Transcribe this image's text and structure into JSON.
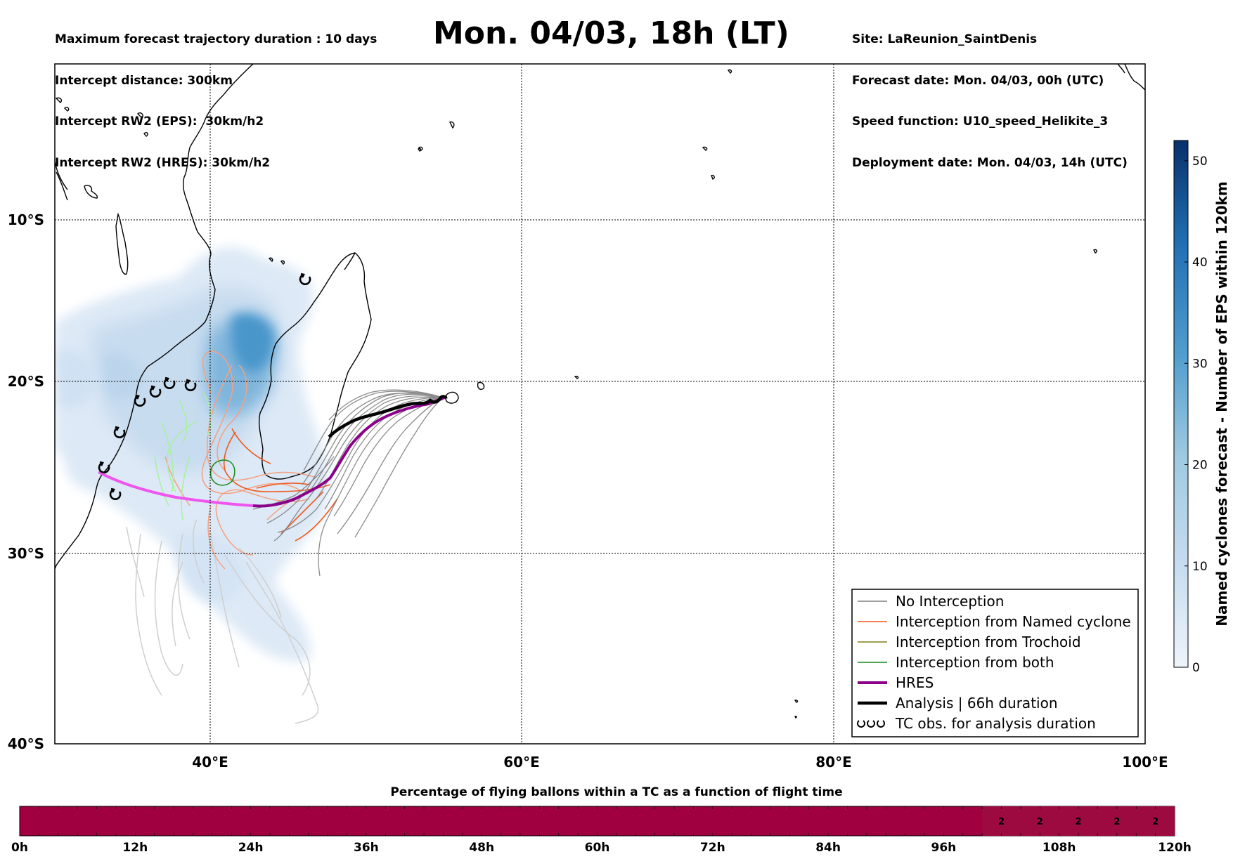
{
  "header": {
    "left_lines": [
      "Maximum forecast trajectory duration : 10 days",
      "Intercept distance: 300km",
      "Intercept RW2 (EPS):  30km/h2",
      "Intercept RW2 (HRES): 30km/h2"
    ],
    "title": "Mon. 04/03, 18h (LT)",
    "right_lines": [
      "Site: LaReunion_SaintDenis",
      "Forecast date: Mon. 04/03, 00h (UTC)",
      "Speed function: U10_speed_Helikite_3",
      "Deployment date: Mon. 04/03, 14h (UTC)"
    ]
  },
  "map": {
    "lon_range": [
      30,
      100
    ],
    "lat_range": [
      -40,
      -0.5
    ],
    "lat_labels": [
      "10°S",
      "20°S",
      "30°S",
      "40°S"
    ],
    "lon_labels": [
      "40°E",
      "60°E",
      "80°E",
      "100°E"
    ],
    "grid": "dotted",
    "colors": {
      "no_interception": "#7f7f7f",
      "named_cyclone": "#f05a1e",
      "trochoid": "#7f7f1a",
      "both": "#1a8a1a",
      "hres": "#8b008b",
      "hres_extension": "#ee55ee",
      "analysis": "#000000",
      "old_tracks": "#cfcfcf",
      "salmon_tracks": "#f5a080",
      "lightgreen_tracks": "#a8f0a0"
    }
  },
  "colorbar": {
    "label": "Named cyclones forecast - Number of EPS within 120km",
    "ticks": [
      "0",
      "10",
      "20",
      "30",
      "40",
      "50"
    ],
    "range": [
      0,
      52
    ],
    "color_low": "#e8f0fa",
    "color_high": "#0a306b"
  },
  "legend": {
    "items": [
      {
        "label": "No Interception",
        "color": "#7f7f7f",
        "style": "thin"
      },
      {
        "label": "Interception from Named cyclone",
        "color": "#f05a1e",
        "style": "thin"
      },
      {
        "label": "Interception from Trochoid",
        "color": "#7f7f1a",
        "style": "thin"
      },
      {
        "label": "Interception from both",
        "color": "#1a8a1a",
        "style": "thin"
      },
      {
        "label": "HRES",
        "color": "#8b008b",
        "style": "thick"
      },
      {
        "label": "Analysis | 66h duration",
        "color": "#000000",
        "style": "thick"
      },
      {
        "label": "TC obs. for analysis duration",
        "color": "#000000",
        "style": "tc"
      }
    ]
  },
  "percent_bar": {
    "title": "Percentage of flying ballons within a TC as a function of flight time",
    "tick_labels": [
      "0h",
      "12h",
      "24h",
      "36h",
      "48h",
      "60h",
      "72h",
      "84h",
      "96h",
      "108h",
      "120h"
    ],
    "cell_values": [
      "2",
      "2",
      "2",
      "2",
      "2"
    ],
    "main_color": "#a0003f",
    "cell_color": "#9c0a40"
  }
}
